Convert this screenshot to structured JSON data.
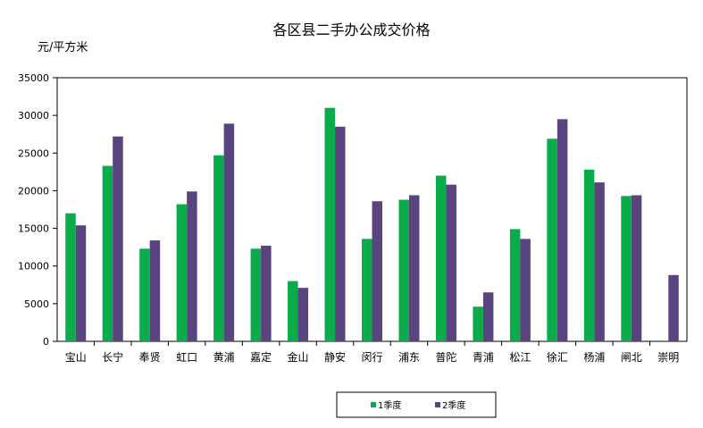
{
  "chart_data": {
    "type": "bar",
    "title": "各区县二手办公成交价格",
    "ylabel": "元/平方米",
    "xlabel": "",
    "ylim": [
      0,
      35000
    ],
    "ytick_step": 5000,
    "grid": false,
    "legend_position": "bottom",
    "categories": [
      "宝山",
      "长宁",
      "奉贤",
      "虹口",
      "黄浦",
      "嘉定",
      "金山",
      "静安",
      "闵行",
      "浦东",
      "普陀",
      "青浦",
      "松江",
      "徐汇",
      "杨浦",
      "闸北",
      "崇明"
    ],
    "series": [
      {
        "name": "1季度",
        "color": "#0aab4a",
        "values": [
          17000,
          23300,
          12300,
          18200,
          24700,
          12300,
          8000,
          31000,
          13600,
          18800,
          22000,
          4600,
          14900,
          26900,
          22800,
          19300,
          0
        ]
      },
      {
        "name": "2季度",
        "color": "#5a4480",
        "values": [
          15400,
          27200,
          13400,
          19900,
          28900,
          12700,
          7100,
          28500,
          18600,
          19400,
          20800,
          6500,
          13600,
          29500,
          21100,
          19400,
          8800
        ]
      }
    ]
  }
}
